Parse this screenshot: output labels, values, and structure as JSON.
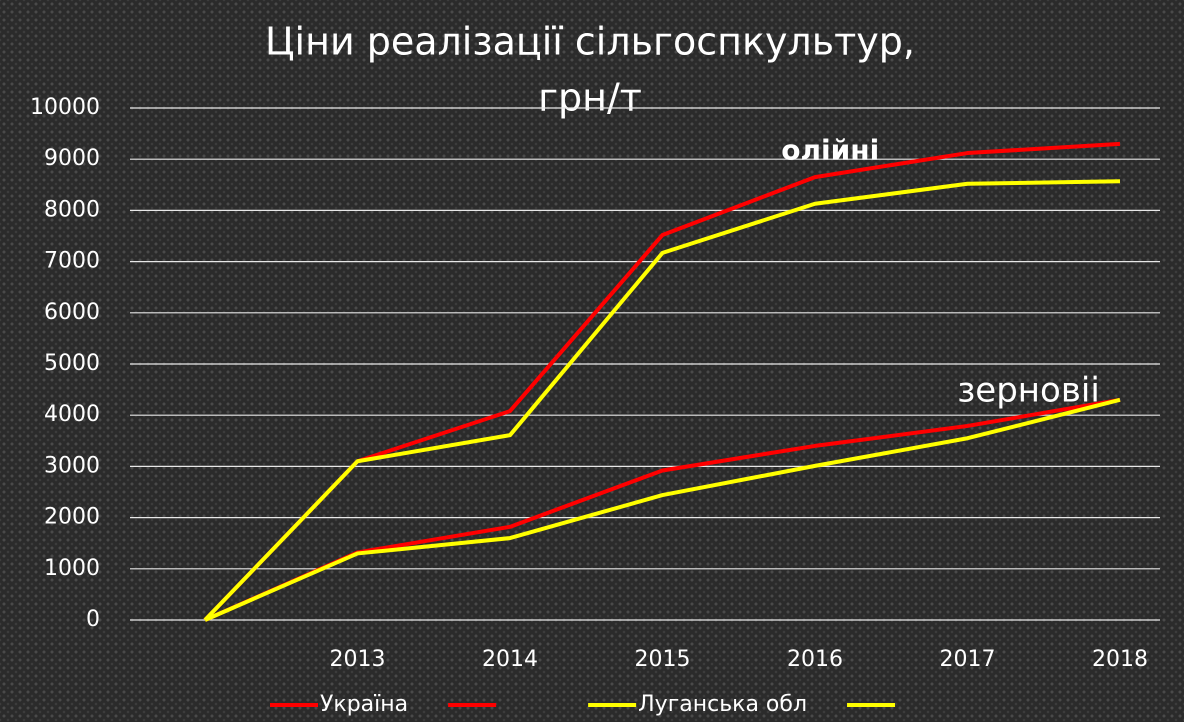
{
  "chart_data": {
    "type": "line",
    "title": [
      "Ціни реалізації сільгоспкультур,",
      "грн/т"
    ],
    "categories": [
      null,
      "2013",
      "2014",
      "2015",
      "2016",
      "2017",
      "2018"
    ],
    "series": [
      {
        "name": "Україна",
        "color": "#ff0000",
        "values": [
          0,
          3100,
          4080,
          7520,
          8650,
          9120,
          9300
        ]
      },
      {
        "color": "#ff0000",
        "values": [
          0,
          1320,
          1820,
          2920,
          3400,
          3790,
          4300
        ]
      },
      {
        "name": "Луганська обл",
        "color": "#ffff00",
        "values": [
          0,
          3100,
          3610,
          7170,
          8130,
          8520,
          8570
        ]
      },
      {
        "color": "#ffff00",
        "values": [
          0,
          1300,
          1600,
          2440,
          3010,
          3550,
          4300
        ]
      }
    ],
    "annotations": [
      {
        "text": "олійні",
        "x": 4.1,
        "y": 9150
      },
      {
        "text": "зерновіі",
        "x": 5.4,
        "y": 4450
      }
    ],
    "ylim": [
      0,
      10000
    ],
    "yticks": [
      0,
      1000,
      2000,
      3000,
      4000,
      5000,
      6000,
      7000,
      8000,
      9000,
      10000
    ],
    "grid": true,
    "legend": "bottom"
  }
}
